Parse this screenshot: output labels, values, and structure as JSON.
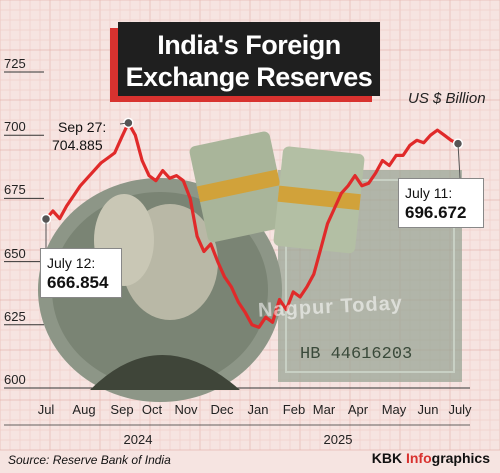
{
  "header": {
    "title_line1": "India's Foreign",
    "title_line2": "Exchange Reserves",
    "unit": "US $ Billion"
  },
  "chart_data": {
    "type": "line",
    "title": "India's Foreign Exchange Reserves",
    "ylabel": "US $ Billion",
    "ylim": [
      600,
      725
    ],
    "yticks": [
      "600",
      "625",
      "650",
      "675",
      "700",
      "725"
    ],
    "xticks": [
      "Jul",
      "Aug",
      "Sep",
      "Oct",
      "Nov",
      "Dec",
      "Jan",
      "Feb",
      "Mar",
      "Apr",
      "May",
      "Jun",
      "July"
    ],
    "years": [
      "2024",
      "2025"
    ],
    "series": [
      {
        "values": [
          666.854,
          670,
          667,
          672,
          676,
          680,
          683,
          686,
          689,
          691,
          693,
          699,
          704.885,
          700,
          690,
          684,
          682,
          686,
          683,
          684,
          682,
          675,
          660,
          654,
          657,
          650,
          644,
          640,
          634,
          630,
          625,
          624,
          628,
          626,
          635,
          631,
          638,
          636,
          640,
          645,
          655,
          665,
          671,
          677,
          680,
          684,
          680,
          681,
          685,
          690,
          688,
          692,
          692,
          696,
          698,
          697,
          700,
          702,
          700,
          698,
          696.672
        ]
      }
    ],
    "annotations": [
      {
        "label": "July 12:",
        "value": "666.854"
      },
      {
        "label": "Sep 27:",
        "value": "704.885"
      },
      {
        "label": "July 11:",
        "value": "696.672"
      }
    ],
    "grid": true,
    "line_color": "#e02a2a"
  },
  "footer": {
    "source": "Source: Reserve Bank of India",
    "brand_prefix": "KBK ",
    "brand_accent": "Info",
    "brand_suffix": "graphics"
  },
  "watermark": "Nagpur Today"
}
